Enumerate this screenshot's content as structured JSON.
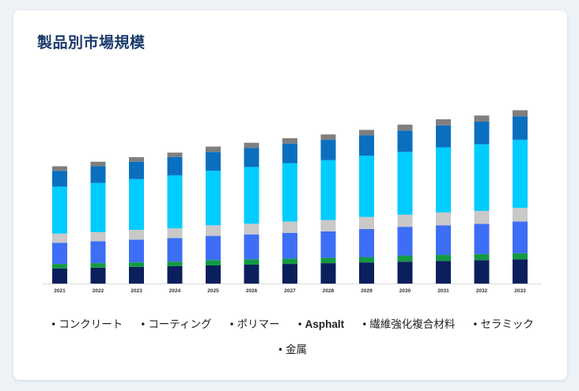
{
  "header": {
    "title": "製品別市場規模"
  },
  "colors": {
    "concrete": "#0a1f5c",
    "coating": "#139a43",
    "polymer": "#3d6ef5",
    "asphalt": "#c9c9c9",
    "frp": "#00ccff",
    "ceramic": "#0a6fbf",
    "metal": "#7f7f7f"
  },
  "legend": [
    {
      "label": "コンクリート",
      "key": "concrete"
    },
    {
      "label": "コーティング",
      "key": "coating"
    },
    {
      "label": "ポリマー",
      "key": "polymer"
    },
    {
      "label": "Asphalt",
      "key": "asphalt"
    },
    {
      "label": "繊維強化複合材料",
      "key": "frp"
    },
    {
      "label": "セラミック",
      "key": "ceramic"
    },
    {
      "label": "金属",
      "key": "metal"
    }
  ],
  "chart_data": {
    "type": "bar",
    "stacked": true,
    "categories": [
      "2021",
      "2022",
      "2023",
      "2024",
      "2025",
      "2026",
      "2027",
      "2028",
      "2029",
      "2030",
      "2031",
      "2032",
      "2033"
    ],
    "series": [
      {
        "name": "コンクリート",
        "key": "concrete",
        "values": [
          20,
          21,
          22,
          23,
          24,
          25,
          26,
          27,
          28,
          29,
          30,
          31,
          32
        ]
      },
      {
        "name": "コーティング",
        "key": "coating",
        "values": [
          6,
          6,
          6,
          6,
          7,
          7,
          7,
          7,
          7,
          8,
          8,
          8,
          8
        ]
      },
      {
        "name": "ポリマー",
        "key": "polymer",
        "values": [
          28,
          29,
          30,
          31,
          32,
          33,
          34,
          35,
          37,
          38,
          39,
          40,
          42
        ]
      },
      {
        "name": "Asphalt",
        "key": "asphalt",
        "values": [
          12,
          12,
          13,
          13,
          14,
          14,
          15,
          15,
          16,
          16,
          17,
          17,
          18
        ]
      },
      {
        "name": "繊維強化複合材料",
        "key": "frp",
        "values": [
          62,
          65,
          67,
          70,
          72,
          75,
          77,
          79,
          81,
          83,
          86,
          88,
          90
        ]
      },
      {
        "name": "セラミック",
        "key": "ceramic",
        "values": [
          21,
          22,
          23,
          24,
          25,
          25,
          26,
          27,
          27,
          28,
          29,
          30,
          31
        ]
      },
      {
        "name": "金属",
        "key": "metal",
        "values": [
          6,
          6,
          6,
          6,
          7,
          7,
          7,
          7,
          7,
          8,
          8,
          8,
          8
        ]
      }
    ],
    "ylim": [
      0,
      240
    ],
    "grid": false,
    "legend_position": "bottom"
  }
}
